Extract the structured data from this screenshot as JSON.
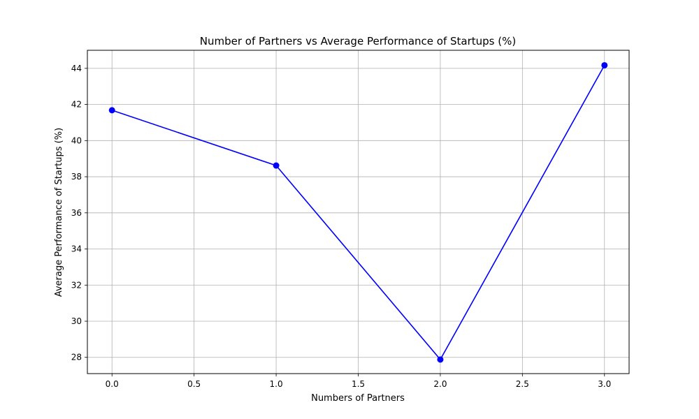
{
  "chart_data": {
    "type": "line",
    "title": "Number of Partners vs Average Performance of Startups (%)",
    "xlabel": "Numbers of Partners",
    "ylabel": "Average Performance of Startups (%)",
    "x": [
      0,
      1,
      2,
      3
    ],
    "series": [
      {
        "values": [
          41.68,
          38.62,
          27.88,
          44.17
        ],
        "color": "#0000ff",
        "marker": "circle"
      }
    ],
    "xlim": [
      -0.15,
      3.15
    ],
    "ylim": [
      27.1,
      45.0
    ],
    "xticks": [
      0.0,
      0.5,
      1.0,
      1.5,
      2.0,
      2.5,
      3.0
    ],
    "xtick_labels": [
      "0.0",
      "0.5",
      "1.0",
      "1.5",
      "2.0",
      "2.5",
      "3.0"
    ],
    "yticks": [
      28,
      30,
      32,
      34,
      36,
      38,
      40,
      42,
      44
    ],
    "ytick_labels": [
      "28",
      "30",
      "32",
      "34",
      "36",
      "38",
      "40",
      "42",
      "44"
    ],
    "grid": true,
    "legend": false
  }
}
